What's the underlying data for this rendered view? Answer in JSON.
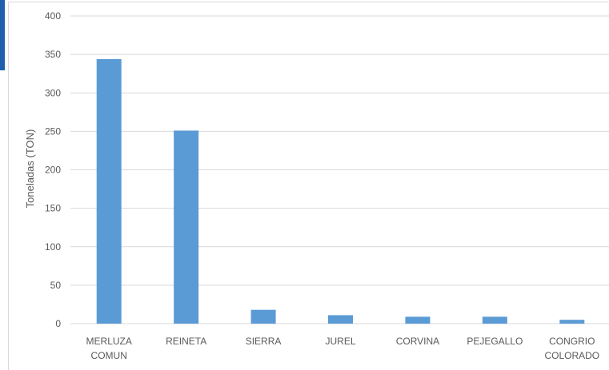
{
  "chart_data": {
    "type": "bar",
    "title": "",
    "xlabel": "",
    "ylabel": "Toneladas (TON)",
    "categories": [
      [
        "MERLUZA",
        "COMUN"
      ],
      [
        "REINETA"
      ],
      [
        "SIERRA"
      ],
      [
        "JUREL"
      ],
      [
        "CORVINA"
      ],
      [
        "PEJEGALLO"
      ],
      [
        "CONGRIO",
        "COLORADO"
      ]
    ],
    "values": [
      344,
      251,
      18,
      11,
      9,
      9,
      5
    ],
    "ylim": [
      0,
      400
    ],
    "yticks": [
      0,
      50,
      100,
      150,
      200,
      250,
      300,
      350,
      400
    ],
    "grid": true,
    "legend": "none",
    "colors": {
      "bar": "#5b9bd5",
      "grid": "#d9d9d9",
      "text": "#595959",
      "accent": "#1f5fae"
    }
  }
}
